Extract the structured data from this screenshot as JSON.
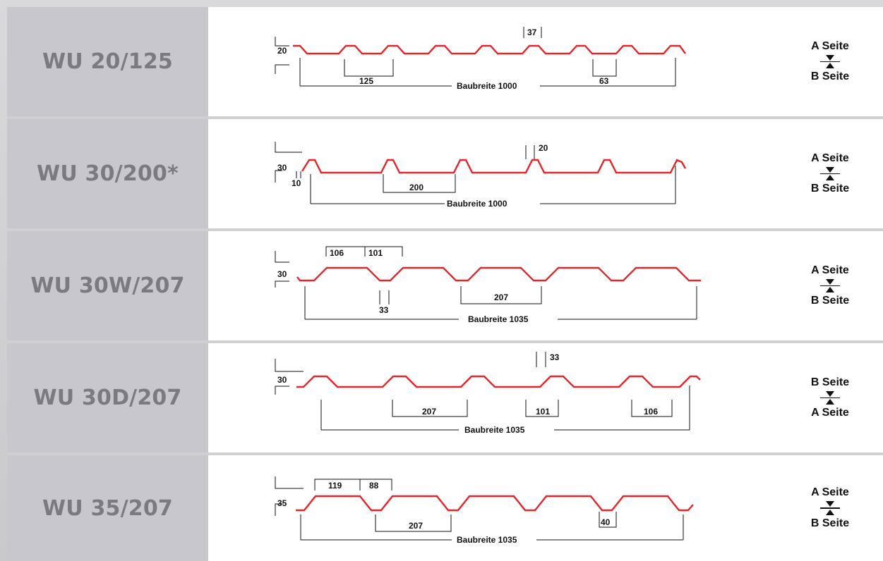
{
  "rows": [
    {
      "name": "WU 20/125",
      "dims": {
        "height": "20",
        "top": "37",
        "pitch": "125",
        "gap": "63",
        "width": "Baubreite 1000"
      },
      "side_top": "A Seite",
      "side_bottom": "B Seite"
    },
    {
      "name": "WU 30/200*",
      "dims": {
        "height": "30",
        "top": "20",
        "base": "10",
        "pitch": "200",
        "width": "Baubreite 1000"
      },
      "side_top": "A Seite",
      "side_bottom": "B Seite"
    },
    {
      "name": "WU 30W/207",
      "dims": {
        "height": "30",
        "a": "106",
        "b": "101",
        "bottom": "33",
        "pitch": "207",
        "width": "Baubreite 1035"
      },
      "side_top": "A Seite",
      "side_bottom": "B Seite"
    },
    {
      "name": "WU 30D/207",
      "dims": {
        "height": "30",
        "top": "33",
        "pitch": "207",
        "a": "101",
        "b": "106",
        "width": "Baubreite 1035"
      },
      "side_top": "B Seite",
      "side_bottom": "A Seite"
    },
    {
      "name": "WU 35/207",
      "dims": {
        "height": "35",
        "a": "119",
        "b": "88",
        "pitch": "207",
        "bottom": "40",
        "width": "Baubreite 1035"
      },
      "side_top": "A Seite",
      "side_bottom": "B Seite"
    }
  ],
  "colors": {
    "profile": "#e3262b",
    "label_bg": "#c8c7cd",
    "label_text": "#7b7a80"
  }
}
